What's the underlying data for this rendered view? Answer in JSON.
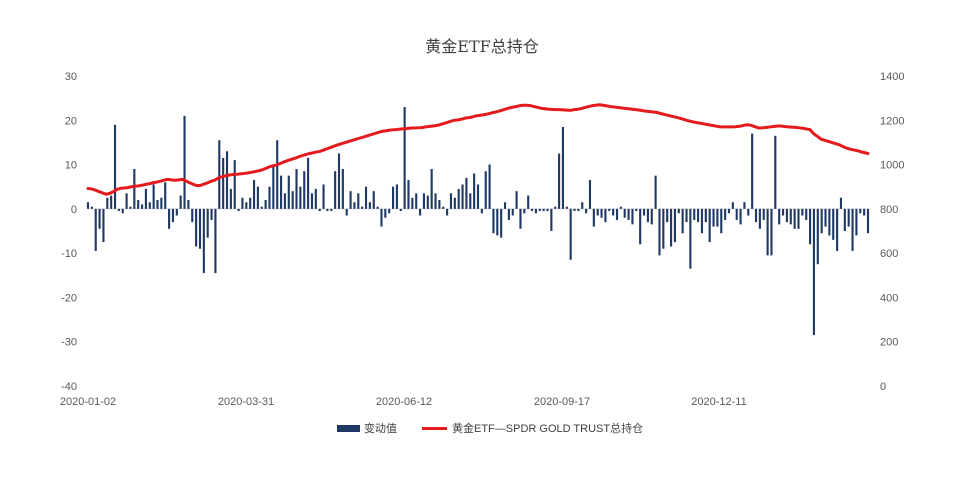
{
  "chart_data": {
    "type": "bar+line",
    "title": "黄金ETF总持仓",
    "x_tick_labels": [
      "2020-01-02",
      "2020-03-31",
      "2020-06-12",
      "2020-09-17",
      "2020-12-11"
    ],
    "y_left": {
      "min": -40,
      "max": 30,
      "ticks": [
        30,
        20,
        10,
        0,
        -10,
        -20,
        -30,
        -40
      ]
    },
    "y_right": {
      "min": 0,
      "max": 1400,
      "ticks": [
        1400,
        1200,
        1000,
        800,
        600,
        400,
        200,
        0
      ]
    },
    "legend": {
      "placement": "bottom-center"
    },
    "series": [
      {
        "name": "变动值",
        "type": "bar",
        "axis": "left",
        "color": "#1f3864",
        "values": [
          1.5,
          0.5,
          -9.5,
          -4.5,
          -7.5,
          2.5,
          3.0,
          19.0,
          -0.5,
          -1.0,
          3.5,
          0.5,
          9.0,
          2.0,
          1.0,
          4.5,
          1.5,
          5.5,
          2.0,
          2.5,
          6.0,
          -4.5,
          -3.0,
          -1.5,
          3.0,
          21.0,
          2.0,
          -3.0,
          -8.5,
          -9.0,
          -14.5,
          -6.5,
          -2.5,
          -14.5,
          15.5,
          11.5,
          13.0,
          4.5,
          11.0,
          -0.5,
          2.5,
          1.5,
          2.5,
          6.5,
          5.0,
          0.5,
          2.0,
          5.0,
          9.5,
          15.5,
          7.5,
          3.5,
          7.5,
          4.0,
          9.0,
          5.0,
          8.5,
          11.5,
          3.5,
          4.5,
          -0.5,
          5.5,
          -0.5,
          -0.5,
          8.5,
          12.5,
          9.0,
          -1.5,
          4.0,
          1.5,
          3.5,
          0.5,
          5.0,
          1.5,
          4.0,
          0.5,
          -4.0,
          -2.0,
          -1.0,
          5.0,
          5.5,
          -0.5,
          23.0,
          6.5,
          2.5,
          3.5,
          -1.5,
          3.5,
          3.0,
          9.0,
          3.5,
          2.0,
          0.5,
          -1.5,
          3.5,
          2.5,
          4.5,
          5.5,
          7.0,
          3.5,
          8.0,
          5.5,
          -1.0,
          8.5,
          10.0,
          -5.5,
          -6.0,
          -6.5,
          1.5,
          -2.5,
          -1.5,
          4.0,
          -4.5,
          -1.0,
          3.0,
          -0.5,
          -1.0,
          -0.5,
          -0.5,
          -0.5,
          -5.0,
          0.5,
          12.5,
          18.5,
          0.5,
          -11.5,
          -0.5,
          -0.5,
          1.5,
          -1.0,
          6.5,
          -4.0,
          -1.5,
          -2.0,
          -3.0,
          -0.5,
          -1.5,
          -2.5,
          0.5,
          -2.0,
          -2.5,
          -3.5,
          -0.5,
          -8.0,
          -1.5,
          -3.0,
          -3.5,
          7.5,
          -10.5,
          -9.0,
          -3.0,
          -8.5,
          -7.5,
          -1.0,
          -5.5,
          -3.0,
          -13.5,
          -2.5,
          -3.0,
          -5.5,
          -3.0,
          -7.5,
          -4.0,
          -4.0,
          -5.5,
          -2.5,
          -1.0,
          1.5,
          -2.5,
          -3.5,
          1.5,
          -1.5,
          17.0,
          -3.0,
          -4.5,
          -2.5,
          -10.5,
          -10.5,
          16.5,
          -3.5,
          -1.5,
          -3.0,
          -3.5,
          -4.5,
          -4.5,
          -1.5,
          -2.5,
          -8.0,
          -28.5,
          -12.5,
          -5.5,
          -4.0,
          -6.0,
          -7.0,
          -9.5,
          2.5,
          -5.0,
          -4.0,
          -9.5,
          -6.0,
          -1.0,
          -1.5,
          -5.5
        ]
      },
      {
        "name": "黄金ETF—SPDR GOLD TRUST总持仓",
        "type": "line",
        "axis": "right",
        "color": "#e41a1c",
        "values": [
          892,
          890,
          885,
          878,
          872,
          866,
          870,
          878,
          888,
          893,
          894,
          896,
          900,
          902,
          904,
          907,
          911,
          914,
          918,
          921,
          925,
          930,
          933,
          931,
          929,
          931,
          933,
          926,
          918,
          911,
          905,
          906,
          912,
          918,
          925,
          930,
          940,
          945,
          950,
          953,
          955,
          956,
          958,
          960,
          962,
          965,
          968,
          972,
          976,
          983,
          990,
          995,
          998,
          1005,
          1012,
          1018,
          1023,
          1028,
          1035,
          1040,
          1045,
          1050,
          1053,
          1057,
          1060,
          1066,
          1072,
          1078,
          1084,
          1090,
          1095,
          1100,
          1105,
          1110,
          1115,
          1120,
          1125,
          1130,
          1135,
          1140,
          1145,
          1150,
          1152,
          1155,
          1157,
          1158,
          1160,
          1162,
          1163,
          1165,
          1165,
          1166,
          1167,
          1170,
          1172,
          1174,
          1176,
          1180,
          1185,
          1190,
          1196,
          1200,
          1202,
          1205,
          1210,
          1212,
          1215,
          1220,
          1222,
          1225,
          1228,
          1232,
          1236,
          1240,
          1245,
          1250,
          1255,
          1259,
          1262,
          1266,
          1268,
          1268,
          1266,
          1262,
          1258,
          1254,
          1252,
          1250,
          1249,
          1248,
          1248,
          1247,
          1246,
          1245,
          1248,
          1250,
          1253,
          1258,
          1262,
          1266,
          1268,
          1270,
          1268,
          1265,
          1262,
          1260,
          1258,
          1256,
          1254,
          1252,
          1250,
          1248,
          1246,
          1243,
          1241,
          1239,
          1237,
          1235,
          1230,
          1226,
          1222,
          1218,
          1214,
          1210,
          1205,
          1200,
          1196,
          1192,
          1189,
          1186,
          1183,
          1180,
          1177,
          1174,
          1171,
          1170,
          1170,
          1170,
          1170,
          1172,
          1174,
          1178,
          1180,
          1176,
          1170,
          1165,
          1166,
          1168,
          1170,
          1172,
          1174,
          1174,
          1172,
          1170,
          1169,
          1168,
          1166,
          1164,
          1161,
          1158,
          1140,
          1128,
          1115,
          1110,
          1105,
          1100,
          1095,
          1090,
          1082,
          1075,
          1070,
          1066,
          1063,
          1058,
          1054,
          1050
        ]
      }
    ]
  }
}
